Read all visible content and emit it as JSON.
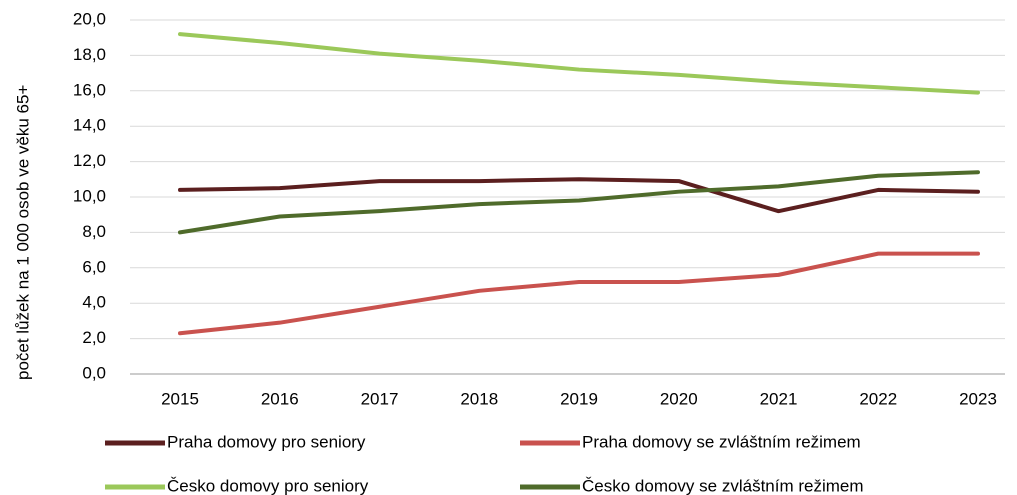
{
  "chart_data": {
    "type": "line",
    "y_label": "počet lůžek na 1 000 osob ve věku 65+",
    "categories": [
      "2015",
      "2016",
      "2017",
      "2018",
      "2019",
      "2020",
      "2021",
      "2022",
      "2023"
    ],
    "series": [
      {
        "name": "Praha domovy pro seniory",
        "color": "#5b1f1f",
        "values": [
          10.4,
          10.5,
          10.9,
          10.9,
          11.0,
          10.9,
          9.2,
          10.4,
          10.3
        ]
      },
      {
        "name": "Praha domovy se zvláštním režimem",
        "color": "#c9524e",
        "values": [
          2.3,
          2.9,
          3.8,
          4.7,
          5.2,
          5.2,
          5.6,
          6.8,
          6.8
        ]
      },
      {
        "name": "Česko domovy pro seniory",
        "color": "#9bc85a",
        "values": [
          19.2,
          18.7,
          18.1,
          17.7,
          17.2,
          16.9,
          16.5,
          16.2,
          15.9
        ]
      },
      {
        "name": "Česko domovy se zvláštním režimem",
        "color": "#4f6b2b",
        "values": [
          8.0,
          8.9,
          9.2,
          9.6,
          9.8,
          10.3,
          10.6,
          11.2,
          11.4
        ]
      }
    ],
    "ylim": [
      0,
      20
    ],
    "yticks": [
      {
        "value": 0,
        "label": "0,0"
      },
      {
        "value": 2,
        "label": "2,0"
      },
      {
        "value": 4,
        "label": "4,0"
      },
      {
        "value": 6,
        "label": "6,0"
      },
      {
        "value": 8,
        "label": "8,0"
      },
      {
        "value": 10,
        "label": "10,0"
      },
      {
        "value": 12,
        "label": "12,0"
      },
      {
        "value": 14,
        "label": "14,0"
      },
      {
        "value": 16,
        "label": "16,0"
      },
      {
        "value": 18,
        "label": "18,0"
      },
      {
        "value": 20,
        "label": "20,0"
      }
    ],
    "grid": true,
    "legend": "bottom"
  }
}
